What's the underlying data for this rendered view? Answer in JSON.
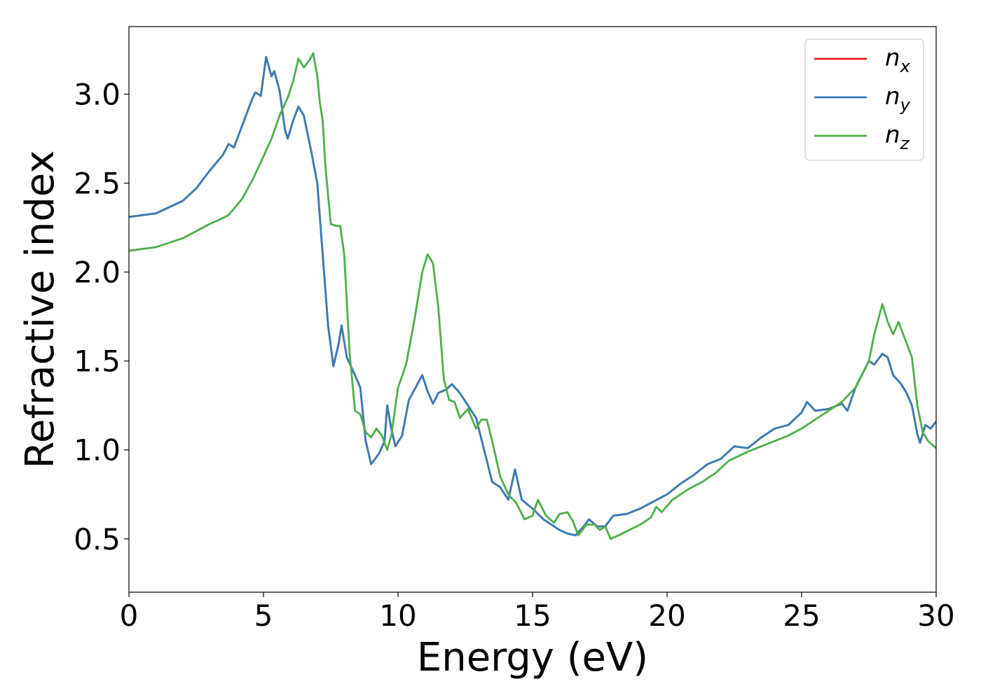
{
  "chart_data": {
    "type": "line",
    "xlabel": "Energy (eV)",
    "ylabel": "Refractive index",
    "xlim": [
      0,
      30
    ],
    "ylim": [
      0.2,
      3.38
    ],
    "xticks": [
      "0",
      "5",
      "10",
      "15",
      "20",
      "25",
      "30"
    ],
    "yticks": [
      "0.5",
      "1.0",
      "1.5",
      "2.0",
      "2.5",
      "3.0"
    ],
    "grid": false,
    "legend_position": "top-right",
    "legend": [
      {
        "base": "n",
        "sub": "x",
        "color": "#e41a1c"
      },
      {
        "base": "n",
        "sub": "y",
        "color": "#377eb8"
      },
      {
        "base": "n",
        "sub": "z",
        "color": "#4daf4a"
      }
    ],
    "series": [
      {
        "name": "n_x",
        "color": "#e41a1c",
        "points": [
          [
            0,
            2.31
          ],
          [
            1,
            2.33
          ],
          [
            2,
            2.4
          ],
          [
            2.5,
            2.47
          ],
          [
            3,
            2.57
          ],
          [
            3.5,
            2.66
          ],
          [
            3.7,
            2.72
          ],
          [
            3.9,
            2.7
          ],
          [
            4.2,
            2.82
          ],
          [
            4.6,
            2.98
          ],
          [
            4.7,
            3.01
          ],
          [
            4.9,
            2.99
          ],
          [
            5.1,
            3.21
          ],
          [
            5.3,
            3.1
          ],
          [
            5.4,
            3.13
          ],
          [
            5.6,
            3.02
          ],
          [
            5.8,
            2.8
          ],
          [
            5.9,
            2.75
          ],
          [
            6.1,
            2.85
          ],
          [
            6.3,
            2.93
          ],
          [
            6.5,
            2.88
          ],
          [
            6.8,
            2.66
          ],
          [
            7.0,
            2.5
          ],
          [
            7.2,
            2.1
          ],
          [
            7.4,
            1.7
          ],
          [
            7.6,
            1.47
          ],
          [
            7.8,
            1.6
          ],
          [
            7.9,
            1.7
          ],
          [
            8.1,
            1.52
          ],
          [
            8.4,
            1.42
          ],
          [
            8.6,
            1.35
          ],
          [
            8.8,
            1.05
          ],
          [
            9.0,
            0.92
          ],
          [
            9.3,
            0.98
          ],
          [
            9.5,
            1.05
          ],
          [
            9.6,
            1.25
          ],
          [
            9.75,
            1.12
          ],
          [
            9.9,
            1.02
          ],
          [
            10.15,
            1.08
          ],
          [
            10.4,
            1.28
          ],
          [
            10.9,
            1.42
          ],
          [
            11.1,
            1.33
          ],
          [
            11.3,
            1.26
          ],
          [
            11.5,
            1.32
          ],
          [
            11.8,
            1.34
          ],
          [
            12.0,
            1.37
          ],
          [
            12.3,
            1.32
          ],
          [
            12.6,
            1.25
          ],
          [
            12.9,
            1.18
          ],
          [
            13.2,
            1.0
          ],
          [
            13.5,
            0.82
          ],
          [
            13.8,
            0.79
          ],
          [
            14.1,
            0.72
          ],
          [
            14.35,
            0.89
          ],
          [
            14.6,
            0.72
          ],
          [
            15.0,
            0.67
          ],
          [
            15.4,
            0.61
          ],
          [
            15.8,
            0.57
          ],
          [
            16.0,
            0.55
          ],
          [
            16.3,
            0.53
          ],
          [
            16.6,
            0.52
          ],
          [
            16.9,
            0.57
          ],
          [
            17.1,
            0.61
          ],
          [
            17.4,
            0.57
          ],
          [
            17.7,
            0.57
          ],
          [
            18.0,
            0.63
          ],
          [
            18.5,
            0.64
          ],
          [
            19.0,
            0.67
          ],
          [
            19.5,
            0.71
          ],
          [
            20.0,
            0.75
          ],
          [
            20.5,
            0.81
          ],
          [
            21.0,
            0.86
          ],
          [
            21.5,
            0.92
          ],
          [
            22.0,
            0.95
          ],
          [
            22.5,
            1.02
          ],
          [
            23.0,
            1.01
          ],
          [
            23.5,
            1.07
          ],
          [
            24.0,
            1.12
          ],
          [
            24.5,
            1.14
          ],
          [
            25.0,
            1.21
          ],
          [
            25.2,
            1.27
          ],
          [
            25.5,
            1.22
          ],
          [
            26.0,
            1.23
          ],
          [
            26.5,
            1.26
          ],
          [
            26.7,
            1.22
          ],
          [
            27.0,
            1.35
          ],
          [
            27.5,
            1.5
          ],
          [
            27.7,
            1.48
          ],
          [
            28.0,
            1.54
          ],
          [
            28.2,
            1.52
          ],
          [
            28.4,
            1.42
          ],
          [
            28.7,
            1.37
          ],
          [
            28.9,
            1.32
          ],
          [
            29.1,
            1.25
          ],
          [
            29.3,
            1.09
          ],
          [
            29.4,
            1.04
          ],
          [
            29.6,
            1.14
          ],
          [
            29.8,
            1.12
          ],
          [
            30.0,
            1.16
          ]
        ]
      },
      {
        "name": "n_y",
        "color": "#377eb8",
        "points": [
          [
            0,
            2.31
          ],
          [
            1,
            2.33
          ],
          [
            2,
            2.4
          ],
          [
            2.5,
            2.47
          ],
          [
            3,
            2.57
          ],
          [
            3.5,
            2.66
          ],
          [
            3.7,
            2.72
          ],
          [
            3.9,
            2.7
          ],
          [
            4.2,
            2.82
          ],
          [
            4.6,
            2.98
          ],
          [
            4.7,
            3.01
          ],
          [
            4.9,
            2.99
          ],
          [
            5.1,
            3.21
          ],
          [
            5.3,
            3.1
          ],
          [
            5.4,
            3.13
          ],
          [
            5.6,
            3.02
          ],
          [
            5.8,
            2.8
          ],
          [
            5.9,
            2.75
          ],
          [
            6.1,
            2.85
          ],
          [
            6.3,
            2.93
          ],
          [
            6.5,
            2.88
          ],
          [
            6.8,
            2.66
          ],
          [
            7.0,
            2.5
          ],
          [
            7.2,
            2.1
          ],
          [
            7.4,
            1.7
          ],
          [
            7.6,
            1.47
          ],
          [
            7.8,
            1.6
          ],
          [
            7.9,
            1.7
          ],
          [
            8.1,
            1.52
          ],
          [
            8.4,
            1.42
          ],
          [
            8.6,
            1.35
          ],
          [
            8.8,
            1.05
          ],
          [
            9.0,
            0.92
          ],
          [
            9.3,
            0.98
          ],
          [
            9.5,
            1.05
          ],
          [
            9.6,
            1.25
          ],
          [
            9.75,
            1.12
          ],
          [
            9.9,
            1.02
          ],
          [
            10.15,
            1.08
          ],
          [
            10.4,
            1.28
          ],
          [
            10.9,
            1.42
          ],
          [
            11.1,
            1.33
          ],
          [
            11.3,
            1.26
          ],
          [
            11.5,
            1.32
          ],
          [
            11.8,
            1.34
          ],
          [
            12.0,
            1.37
          ],
          [
            12.3,
            1.32
          ],
          [
            12.6,
            1.25
          ],
          [
            12.9,
            1.18
          ],
          [
            13.2,
            1.0
          ],
          [
            13.5,
            0.82
          ],
          [
            13.8,
            0.79
          ],
          [
            14.1,
            0.72
          ],
          [
            14.35,
            0.89
          ],
          [
            14.6,
            0.72
          ],
          [
            15.0,
            0.67
          ],
          [
            15.4,
            0.61
          ],
          [
            15.8,
            0.57
          ],
          [
            16.0,
            0.55
          ],
          [
            16.3,
            0.53
          ],
          [
            16.6,
            0.52
          ],
          [
            16.9,
            0.57
          ],
          [
            17.1,
            0.61
          ],
          [
            17.4,
            0.57
          ],
          [
            17.7,
            0.57
          ],
          [
            18.0,
            0.63
          ],
          [
            18.5,
            0.64
          ],
          [
            19.0,
            0.67
          ],
          [
            19.5,
            0.71
          ],
          [
            20.0,
            0.75
          ],
          [
            20.5,
            0.81
          ],
          [
            21.0,
            0.86
          ],
          [
            21.5,
            0.92
          ],
          [
            22.0,
            0.95
          ],
          [
            22.5,
            1.02
          ],
          [
            23.0,
            1.01
          ],
          [
            23.5,
            1.07
          ],
          [
            24.0,
            1.12
          ],
          [
            24.5,
            1.14
          ],
          [
            25.0,
            1.21
          ],
          [
            25.2,
            1.27
          ],
          [
            25.5,
            1.22
          ],
          [
            26.0,
            1.23
          ],
          [
            26.5,
            1.26
          ],
          [
            26.7,
            1.22
          ],
          [
            27.0,
            1.35
          ],
          [
            27.5,
            1.5
          ],
          [
            27.7,
            1.48
          ],
          [
            28.0,
            1.54
          ],
          [
            28.2,
            1.52
          ],
          [
            28.4,
            1.42
          ],
          [
            28.7,
            1.37
          ],
          [
            28.9,
            1.32
          ],
          [
            29.1,
            1.25
          ],
          [
            29.3,
            1.09
          ],
          [
            29.4,
            1.04
          ],
          [
            29.6,
            1.14
          ],
          [
            29.8,
            1.12
          ],
          [
            30.0,
            1.16
          ]
        ]
      },
      {
        "name": "n_z",
        "color": "#4daf4a",
        "points": [
          [
            0,
            2.12
          ],
          [
            1,
            2.14
          ],
          [
            2,
            2.19
          ],
          [
            3,
            2.27
          ],
          [
            3.3,
            2.29
          ],
          [
            3.7,
            2.32
          ],
          [
            4.2,
            2.41
          ],
          [
            4.6,
            2.52
          ],
          [
            5.0,
            2.65
          ],
          [
            5.3,
            2.75
          ],
          [
            5.6,
            2.88
          ],
          [
            5.9,
            2.98
          ],
          [
            6.1,
            3.07
          ],
          [
            6.3,
            3.2
          ],
          [
            6.5,
            3.15
          ],
          [
            6.7,
            3.19
          ],
          [
            6.85,
            3.23
          ],
          [
            7.0,
            3.1
          ],
          [
            7.1,
            2.95
          ],
          [
            7.2,
            2.85
          ],
          [
            7.3,
            2.6
          ],
          [
            7.5,
            2.27
          ],
          [
            7.7,
            2.26
          ],
          [
            7.85,
            2.26
          ],
          [
            8.0,
            2.1
          ],
          [
            8.2,
            1.55
          ],
          [
            8.4,
            1.22
          ],
          [
            8.6,
            1.2
          ],
          [
            8.8,
            1.1
          ],
          [
            9.0,
            1.07
          ],
          [
            9.2,
            1.12
          ],
          [
            9.4,
            1.08
          ],
          [
            9.6,
            1.0
          ],
          [
            9.75,
            1.08
          ],
          [
            10.0,
            1.35
          ],
          [
            10.3,
            1.48
          ],
          [
            10.6,
            1.72
          ],
          [
            10.9,
            2.0
          ],
          [
            11.1,
            2.1
          ],
          [
            11.3,
            2.05
          ],
          [
            11.5,
            1.8
          ],
          [
            11.7,
            1.4
          ],
          [
            11.9,
            1.28
          ],
          [
            12.1,
            1.27
          ],
          [
            12.3,
            1.18
          ],
          [
            12.6,
            1.23
          ],
          [
            12.9,
            1.12
          ],
          [
            13.1,
            1.17
          ],
          [
            13.3,
            1.17
          ],
          [
            13.5,
            1.05
          ],
          [
            13.8,
            0.85
          ],
          [
            14.1,
            0.75
          ],
          [
            14.4,
            0.7
          ],
          [
            14.7,
            0.61
          ],
          [
            15.0,
            0.63
          ],
          [
            15.2,
            0.72
          ],
          [
            15.5,
            0.63
          ],
          [
            15.8,
            0.59
          ],
          [
            16.0,
            0.64
          ],
          [
            16.3,
            0.65
          ],
          [
            16.5,
            0.6
          ],
          [
            16.7,
            0.52
          ],
          [
            17.0,
            0.58
          ],
          [
            17.3,
            0.58
          ],
          [
            17.5,
            0.55
          ],
          [
            17.7,
            0.57
          ],
          [
            17.9,
            0.5
          ],
          [
            18.2,
            0.52
          ],
          [
            18.6,
            0.55
          ],
          [
            19.0,
            0.58
          ],
          [
            19.4,
            0.62
          ],
          [
            19.6,
            0.68
          ],
          [
            19.8,
            0.65
          ],
          [
            20.2,
            0.72
          ],
          [
            20.8,
            0.78
          ],
          [
            21.3,
            0.82
          ],
          [
            21.8,
            0.87
          ],
          [
            22.3,
            0.94
          ],
          [
            23.0,
            0.99
          ],
          [
            23.5,
            1.02
          ],
          [
            24.0,
            1.05
          ],
          [
            24.5,
            1.08
          ],
          [
            25.0,
            1.12
          ],
          [
            25.5,
            1.17
          ],
          [
            26.0,
            1.22
          ],
          [
            26.5,
            1.27
          ],
          [
            27.0,
            1.35
          ],
          [
            27.5,
            1.5
          ],
          [
            27.7,
            1.65
          ],
          [
            28.0,
            1.82
          ],
          [
            28.2,
            1.72
          ],
          [
            28.4,
            1.65
          ],
          [
            28.6,
            1.72
          ],
          [
            28.9,
            1.6
          ],
          [
            29.1,
            1.52
          ],
          [
            29.3,
            1.25
          ],
          [
            29.5,
            1.1
          ],
          [
            29.7,
            1.05
          ],
          [
            30.0,
            1.01
          ]
        ]
      }
    ]
  }
}
